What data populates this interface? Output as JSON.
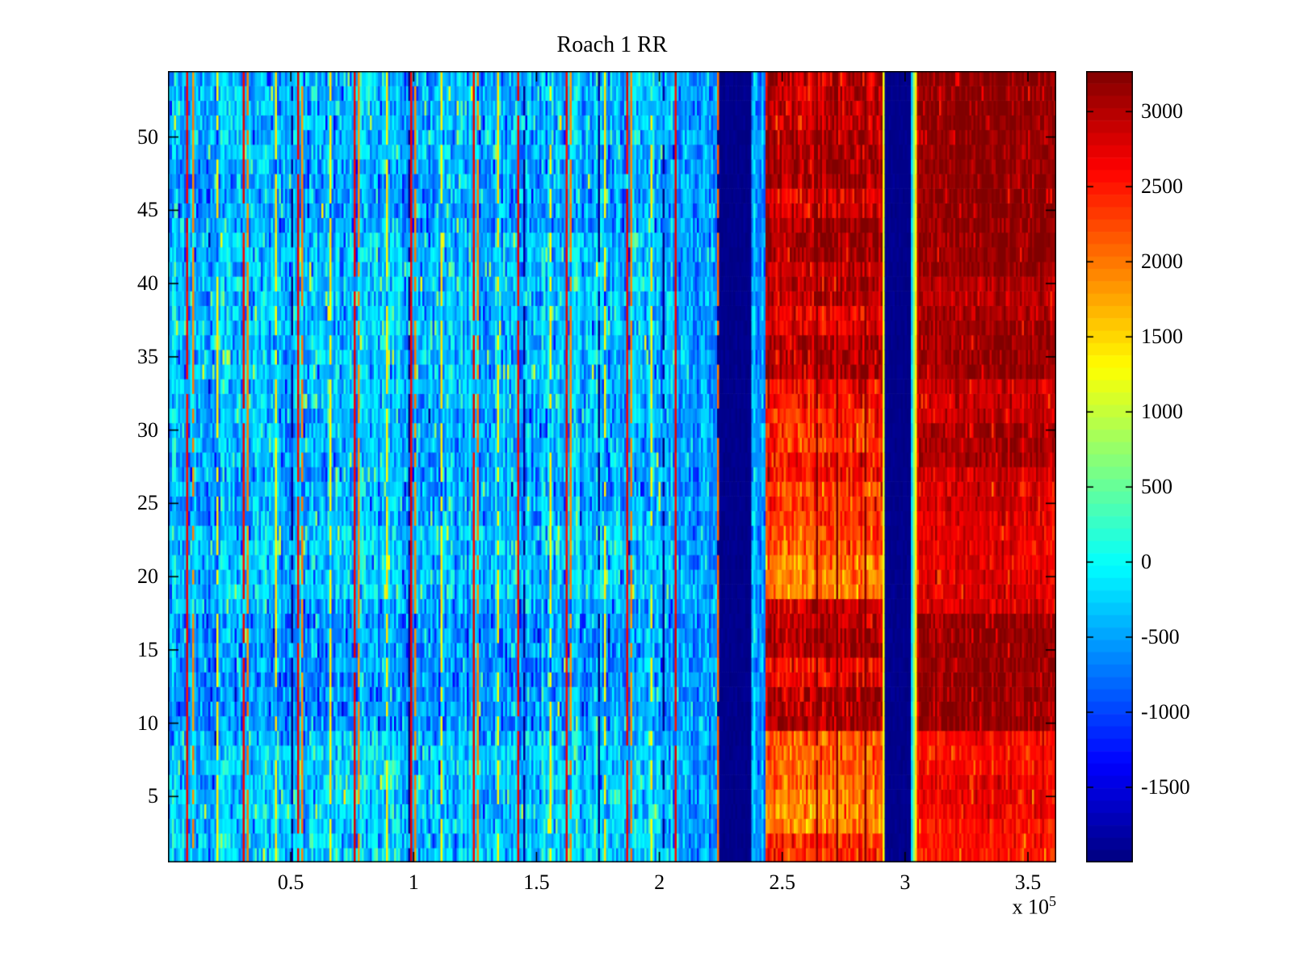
{
  "figure": {
    "background": "#ffffff",
    "text_color": "#000000"
  },
  "chart_data": {
    "type": "heatmap",
    "title": "Roach 1 RR",
    "description": "MATLAB-style imagesc heatmap (jet colormap) of RR interval values over time (x, units of 1e5) for 54 trials/rows (y). Left two-thirds is low-amplitude cyan/blue noise with periodic thin red/orange/yellow event lines; two solid dark-blue vertical gap bands near x=2.3e5 and x=2.97e5 separate high-amplitude orange/red regions; rightmost region is saturated dark red.",
    "xaxis": {
      "min": 0,
      "max": 3.615,
      "unit_multiplier": "1e5",
      "exponent_prefix": "x 10",
      "exponent": "5",
      "ticks": [
        {
          "v": 0.5,
          "label": "0.5"
        },
        {
          "v": 1.0,
          "label": "1"
        },
        {
          "v": 1.5,
          "label": "1.5"
        },
        {
          "v": 2.0,
          "label": "2"
        },
        {
          "v": 2.5,
          "label": "2.5"
        },
        {
          "v": 3.0,
          "label": "3"
        },
        {
          "v": 3.5,
          "label": "3.5"
        }
      ]
    },
    "yaxis": {
      "min": 0.5,
      "max": 54.5,
      "rows": 54,
      "ticks": [
        {
          "v": 5,
          "label": "5"
        },
        {
          "v": 10,
          "label": "10"
        },
        {
          "v": 15,
          "label": "15"
        },
        {
          "v": 20,
          "label": "20"
        },
        {
          "v": 25,
          "label": "25"
        },
        {
          "v": 30,
          "label": "30"
        },
        {
          "v": 35,
          "label": "35"
        },
        {
          "v": 40,
          "label": "40"
        },
        {
          "v": 45,
          "label": "45"
        },
        {
          "v": 50,
          "label": "50"
        }
      ]
    },
    "colorbar": {
      "vmin": -2000,
      "vmax": 3270,
      "steps": 64,
      "ticks": [
        {
          "v": 3000,
          "label": "3000"
        },
        {
          "v": 2500,
          "label": "2500"
        },
        {
          "v": 2000,
          "label": "2000"
        },
        {
          "v": 1500,
          "label": "1500"
        },
        {
          "v": 1000,
          "label": "1000"
        },
        {
          "v": 500,
          "label": "500"
        },
        {
          "v": 0,
          "label": "0"
        },
        {
          "v": -500,
          "label": "-500"
        },
        {
          "v": -1000,
          "label": "-1000"
        },
        {
          "v": -1500,
          "label": "-1500"
        }
      ]
    },
    "colormap": {
      "name": "jet",
      "stops": [
        "#00008f",
        "#0000ff",
        "#00ffff",
        "#ffff00",
        "#ff0000",
        "#8f0000"
      ]
    },
    "grid": {
      "nx": 440,
      "ny": 54
    },
    "render": {
      "seed": 1337,
      "noise_model": "seeded-uniform"
    },
    "row_profiles": {
      "A_offsets": [
        60,
        60,
        60,
        60,
        60,
        60,
        60,
        60,
        0,
        -220,
        -220,
        -220,
        -220,
        -220,
        -220,
        -220,
        -220,
        -80,
        40,
        40,
        40,
        40,
        40,
        -120,
        -120,
        -120,
        -120,
        -60,
        -60,
        -60,
        -60,
        0,
        0,
        0,
        0,
        0,
        0,
        0,
        0,
        0,
        0,
        0,
        0,
        -160,
        -160,
        -160,
        -160,
        -160,
        -40,
        -40,
        -40,
        -40,
        -40,
        -40
      ],
      "C": [
        2450,
        2450,
        1950,
        1950,
        1950,
        2100,
        2100,
        2100,
        2100,
        3050,
        3050,
        3050,
        2600,
        2600,
        3050,
        3050,
        2850,
        2850,
        1950,
        1950,
        1950,
        2200,
        2200,
        2350,
        2350,
        2350,
        2500,
        2500,
        2350,
        2350,
        2350,
        2600,
        2600,
        3000,
        3000,
        3000,
        2700,
        2700,
        2900,
        2900,
        2900,
        3100,
        3100,
        3100,
        2800,
        2800,
        3050,
        3050,
        3050,
        3050,
        2900,
        2900,
        2900,
        2900
      ],
      "D": [
        2550,
        2550,
        2550,
        2700,
        2700,
        2700,
        2600,
        2600,
        2600,
        3180,
        3180,
        3180,
        3180,
        3180,
        3180,
        3180,
        3180,
        2800,
        2800,
        2800,
        2750,
        2750,
        2750,
        2750,
        2850,
        2850,
        2850,
        3100,
        3100,
        3100,
        2900,
        2900,
        2900,
        3150,
        3150,
        3150,
        3150,
        3000,
        3000,
        3000,
        3200,
        3200,
        3200,
        3200,
        3200,
        3200,
        3200,
        3200,
        3200,
        3200,
        3200,
        3200,
        3200,
        3200
      ]
    },
    "regions": [
      {
        "name": "baseline-noise",
        "x0": 0,
        "x1": 2.06,
        "base": -250,
        "sigma": 300,
        "col_sigma": 260,
        "row_offsets": "A_offsets",
        "speckles": [
          {
            "p": 0.3,
            "dv": -380
          },
          {
            "p": 0.05,
            "dv": 520
          },
          {
            "p": 0.012,
            "dv": 1100
          },
          {
            "p": 0.02,
            "dv": -650
          }
        ]
      },
      {
        "name": "pre-gap-blue",
        "x0": 2.06,
        "x1": 2.235,
        "base": -650,
        "sigma": 280,
        "col_sigma": 220,
        "speckles": [
          {
            "p": 0.15,
            "dv": 420
          }
        ]
      },
      {
        "name": "gap-band-1",
        "x0": 2.235,
        "x1": 2.375,
        "base": -1940,
        "sigma": 45,
        "col_sigma": 20,
        "speckles": []
      },
      {
        "name": "post-gap-strip",
        "x0": 2.375,
        "x1": 2.435,
        "base": -520,
        "sigma": 300,
        "col_sigma": 300,
        "speckles": []
      },
      {
        "name": "active-warm",
        "x0": 2.435,
        "x1": 2.915,
        "row_profile": "C",
        "sigma": 280,
        "col_sigma": 180,
        "speckles": [
          {
            "p": 0.05,
            "dv": 380
          },
          {
            "p": 0.04,
            "dv": -350
          }
        ]
      },
      {
        "name": "gap-band-2",
        "x0": 2.915,
        "x1": 3.045,
        "base": -1940,
        "sigma": 45,
        "col_sigma": 20,
        "speckles": []
      },
      {
        "name": "saturated-warm",
        "x0": 3.045,
        "x1": 3.615,
        "row_profile": "D",
        "sigma": 200,
        "col_sigma": 140,
        "speckles": [
          {
            "p": 0.05,
            "dv": -420
          }
        ]
      }
    ],
    "vertical_lines": [
      {
        "x": 0.082,
        "v": 2650,
        "skip_p": 0.05
      },
      {
        "x": 0.31,
        "v": 2650,
        "skip_p": 0.05
      },
      {
        "x": 0.533,
        "v": 2650,
        "skip_p": 0.05
      },
      {
        "x": 0.757,
        "v": 2650,
        "skip_p": 0.05
      },
      {
        "x": 0.99,
        "v": 2650,
        "skip_p": 0.05
      },
      {
        "x": 1.247,
        "v": 2650,
        "skip_p": 0.05
      },
      {
        "x": 1.423,
        "v": 2650,
        "skip_p": 0.05
      },
      {
        "x": 1.62,
        "v": 2650,
        "skip_p": 0.05
      },
      {
        "x": 1.868,
        "v": 2650,
        "skip_p": 0.05
      },
      {
        "x": 2.07,
        "v": 2650,
        "skip_p": 0.05
      },
      {
        "x": 0.1,
        "v": 1900,
        "skip_p": 0.15
      },
      {
        "x": 0.325,
        "v": 1900,
        "skip_p": 0.15
      },
      {
        "x": 0.55,
        "v": 1900,
        "skip_p": 0.15
      },
      {
        "x": 0.775,
        "v": 1900,
        "skip_p": 0.15
      },
      {
        "x": 1.005,
        "v": 1900,
        "skip_p": 0.15
      },
      {
        "x": 1.262,
        "v": 1900,
        "skip_p": 0.15
      },
      {
        "x": 1.64,
        "v": 1900,
        "skip_p": 0.15
      },
      {
        "x": 1.885,
        "v": 1900,
        "skip_p": 0.15
      },
      {
        "x": 0.2,
        "v": 1350,
        "skip_p": 0.25
      },
      {
        "x": 0.438,
        "v": 1350,
        "skip_p": 0.25
      },
      {
        "x": 0.66,
        "v": 1350,
        "skip_p": 0.25
      },
      {
        "x": 0.895,
        "v": 1350,
        "skip_p": 0.25
      },
      {
        "x": 1.115,
        "v": 1350,
        "skip_p": 0.25
      },
      {
        "x": 1.34,
        "v": 1350,
        "skip_p": 0.25
      },
      {
        "x": 1.556,
        "v": 1350,
        "skip_p": 0.25
      },
      {
        "x": 1.78,
        "v": 1350,
        "skip_p": 0.25
      },
      {
        "x": 1.965,
        "v": 1350,
        "skip_p": 0.25
      },
      {
        "x": 0.502,
        "v": -1900,
        "skip_p": 0.3
      },
      {
        "x": 0.982,
        "v": -1900,
        "skip_p": 0.3
      },
      {
        "x": 1.45,
        "v": -1900,
        "skip_p": 0.3
      },
      {
        "x": 1.75,
        "v": -1900,
        "skip_p": 0.3
      },
      {
        "x": 2.02,
        "v": -1900,
        "skip_p": 0.3
      },
      {
        "x": 2.238,
        "v": 2100,
        "skip_p": 0.15
      },
      {
        "x": 2.64,
        "v": 3255,
        "skip_p": 0.1
      },
      {
        "x": 2.722,
        "v": 3255,
        "skip_p": 0.1
      },
      {
        "x": 2.838,
        "v": 3255,
        "skip_p": 0.1
      },
      {
        "x": 2.91,
        "v": 1250,
        "skip_p": 0
      },
      {
        "x": 3.024,
        "v": -250,
        "skip_p": 0
      },
      {
        "x": 3.032,
        "v": 650,
        "skip_p": 0
      },
      {
        "x": 3.04,
        "v": 1400,
        "skip_p": 0
      }
    ]
  }
}
